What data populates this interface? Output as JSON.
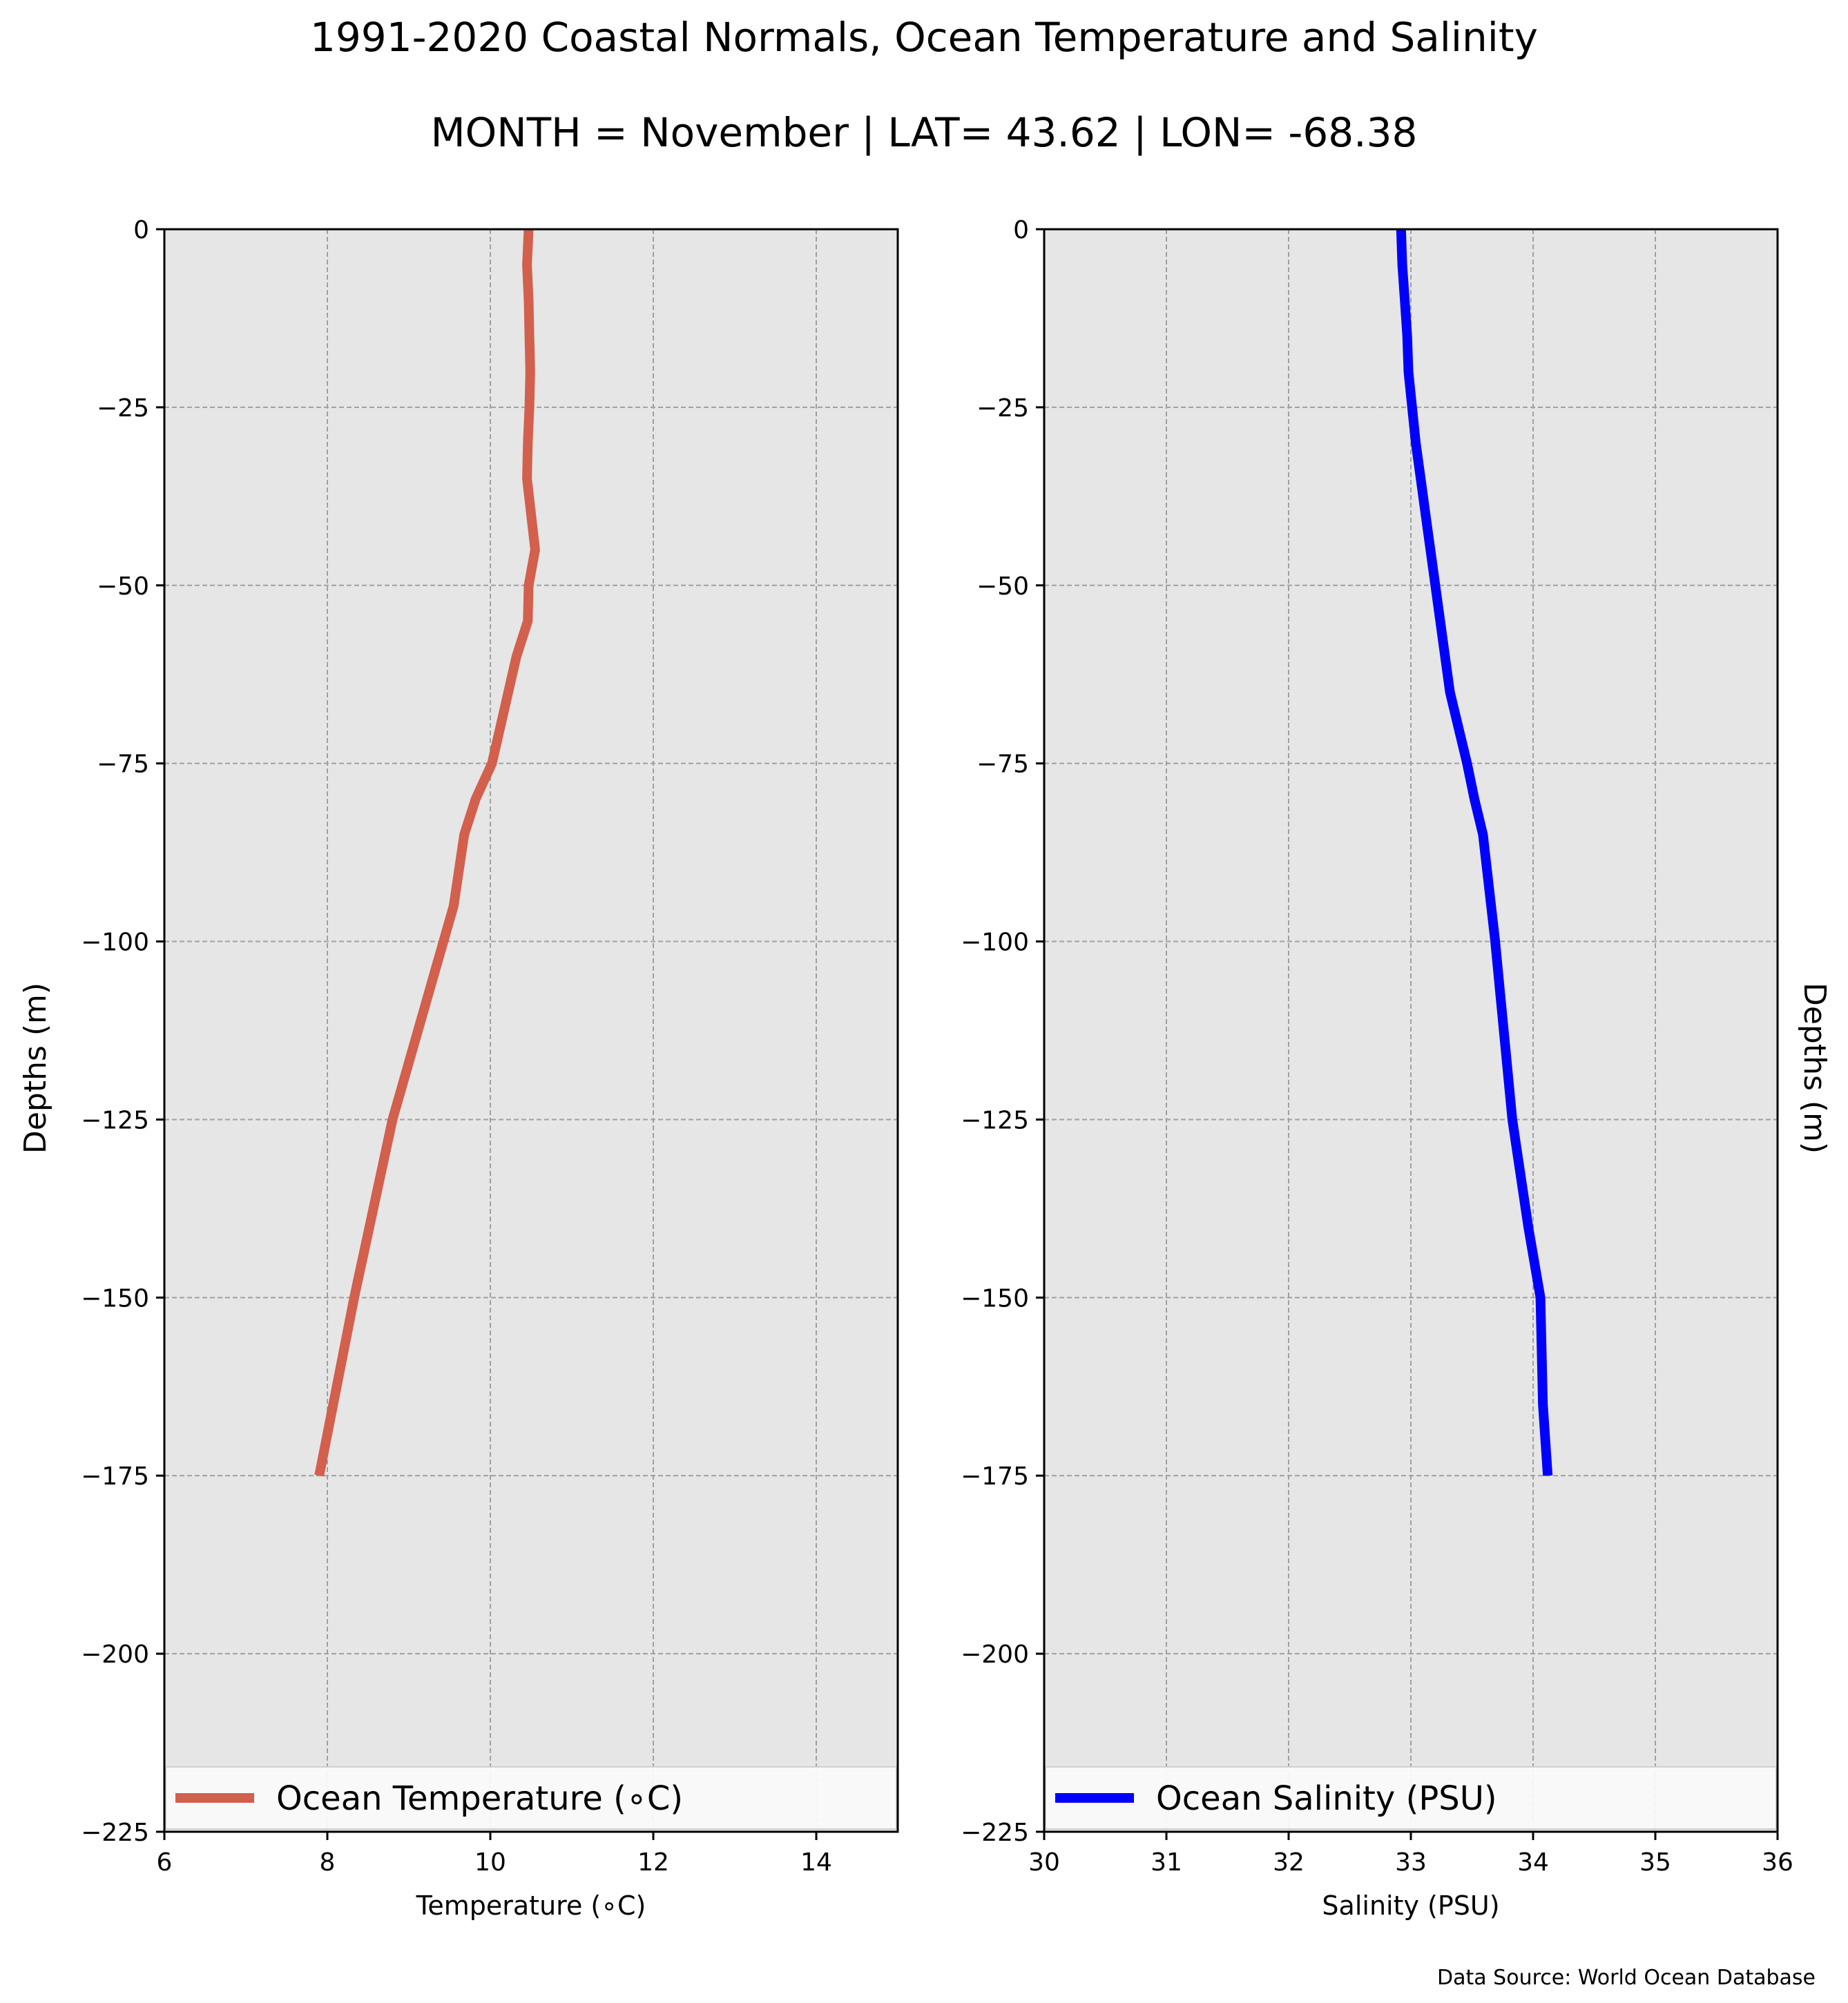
{
  "title": "1991-2020 Coastal Normals, Ocean Temperature and Salinity",
  "subtitle": "MONTH = November | LAT= 43.62 | LON= -68.38",
  "source": "Data Source: World Ocean Database",
  "chart_data": [
    {
      "type": "line",
      "xlabel": "Temperature (∘C)",
      "ylabel": "Depths (m)",
      "xlim": [
        6,
        15
      ],
      "ylim": [
        -225,
        0
      ],
      "xticks": [
        6,
        8,
        10,
        12,
        14
      ],
      "xtick_labels": [
        "6",
        "8",
        "10",
        "12",
        "14"
      ],
      "yticks": [
        0,
        -25,
        -50,
        -75,
        -100,
        -125,
        -150,
        -175,
        -200,
        -225
      ],
      "ytick_labels": [
        "0",
        "−25",
        "−50",
        "−75",
        "−100",
        "−125",
        "−150",
        "−175",
        "−200",
        "−225"
      ],
      "grid": true,
      "legend_position": "bottom",
      "series": [
        {
          "name": "Ocean Temperature (∘C)",
          "color": "#d35f4d",
          "x": [
            10.47,
            10.45,
            10.47,
            10.48,
            10.49,
            10.48,
            10.46,
            10.45,
            10.55,
            10.47,
            10.46,
            10.32,
            10.22,
            10.02,
            9.82,
            9.68,
            9.55,
            8.8,
            8.33,
            7.9
          ],
          "y": [
            0,
            -5,
            -10,
            -15,
            -20,
            -25,
            -30,
            -35,
            -45,
            -50,
            -55,
            -60,
            -65,
            -75,
            -80,
            -85,
            -95,
            -125,
            -150,
            -175
          ]
        }
      ]
    },
    {
      "type": "line",
      "xlabel": "Salinity (PSU)",
      "ylabel": "Depths (m)",
      "xlim": [
        30,
        36
      ],
      "ylim": [
        -225,
        0
      ],
      "xticks": [
        30,
        31,
        32,
        33,
        34,
        35,
        36
      ],
      "xtick_labels": [
        "30",
        "31",
        "32",
        "33",
        "34",
        "35",
        "36"
      ],
      "yticks": [
        0,
        -25,
        -50,
        -75,
        -100,
        -125,
        -150,
        -175,
        -200,
        -225
      ],
      "ytick_labels": [
        "0",
        "−25",
        "−50",
        "−75",
        "−100",
        "−125",
        "−150",
        "−175",
        "−200",
        "−225"
      ],
      "grid": true,
      "legend_position": "bottom",
      "series": [
        {
          "name": "Ocean Salinity (PSU)",
          "color": "#0000ff",
          "x": [
            32.92,
            32.93,
            32.95,
            32.97,
            32.98,
            33.01,
            33.04,
            33.08,
            33.12,
            33.2,
            33.32,
            33.46,
            33.52,
            33.59,
            33.69,
            33.83,
            33.96,
            34.06,
            34.08,
            34.12
          ],
          "y": [
            0,
            -5,
            -10,
            -15,
            -20,
            -25,
            -30,
            -35,
            -40,
            -50,
            -65,
            -75,
            -80,
            -85,
            -100,
            -125,
            -140,
            -150,
            -165,
            -175
          ]
        }
      ]
    }
  ]
}
